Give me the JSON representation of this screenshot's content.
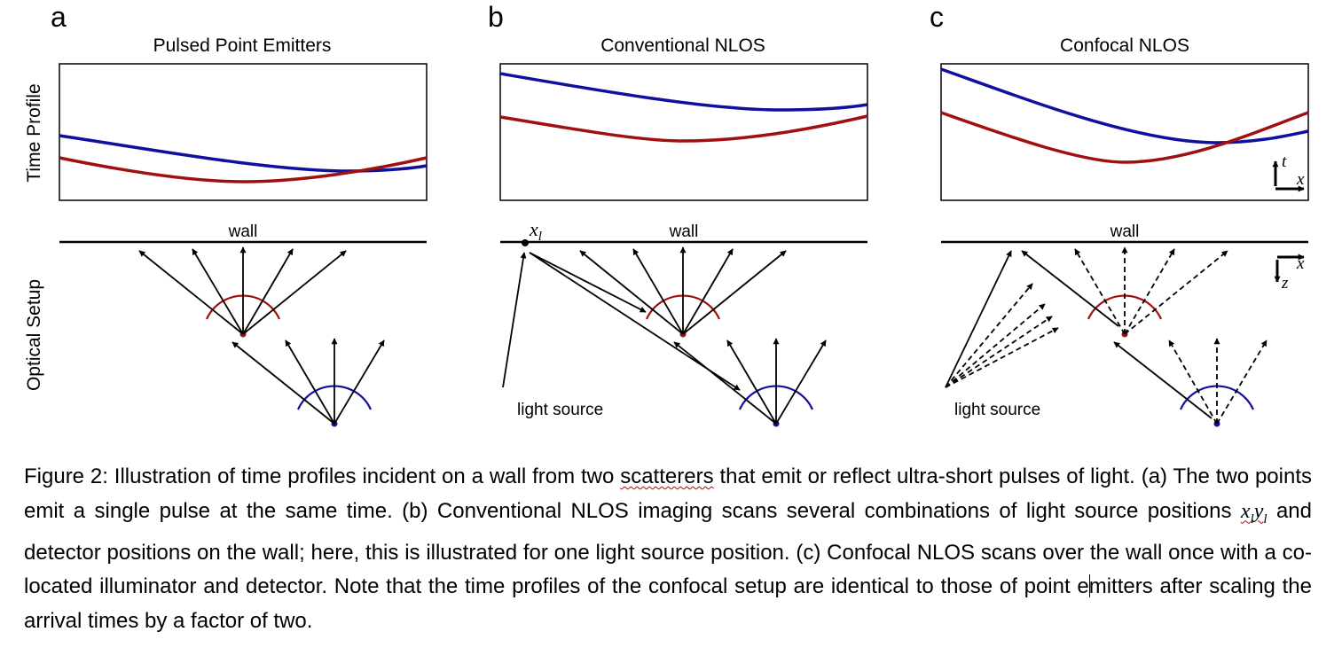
{
  "figure": {
    "panels": [
      {
        "letter": "a",
        "title": "Pulsed Point Emitters",
        "wall_label": "wall"
      },
      {
        "letter": "b",
        "title": "Conventional NLOS",
        "wall_label": "wall",
        "point_label": "x",
        "point_sub": "l",
        "source_label": "light source"
      },
      {
        "letter": "c",
        "title": "Confocal NLOS",
        "wall_label": "wall",
        "source_label": "light source"
      }
    ],
    "row_labels": {
      "time_profile": "Time Profile",
      "optical_setup": "Optical Setup"
    },
    "axes_symbols": {
      "t": "t",
      "x": "x",
      "z": "z"
    },
    "colors": {
      "blue": "#1010a0",
      "red": "#a01010",
      "black": "#000000"
    }
  },
  "caption": {
    "p1": "Figure 2: Illustration of time profiles incident on a wall from two ",
    "scatterers": "scatterers",
    "p2": " that emit or reflect ultra-short pulses of light. (a) The two points emit a single pulse at the same time. (b) Conventional NLOS imaging scans several combinations of light source positions ",
    "x": "x",
    "xsub": "l",
    "y": "y",
    "ysub": "l",
    "p3": " and detector positions on the wall; here, this is illustrated for one light source position. (c) Confocal NLOS scans over the wall once with a co-located illuminator and detector. Note that the time profiles of the confocal setup are identical to those of point e",
    "p4": "mitters after scaling the arrival times by a factor of two."
  }
}
